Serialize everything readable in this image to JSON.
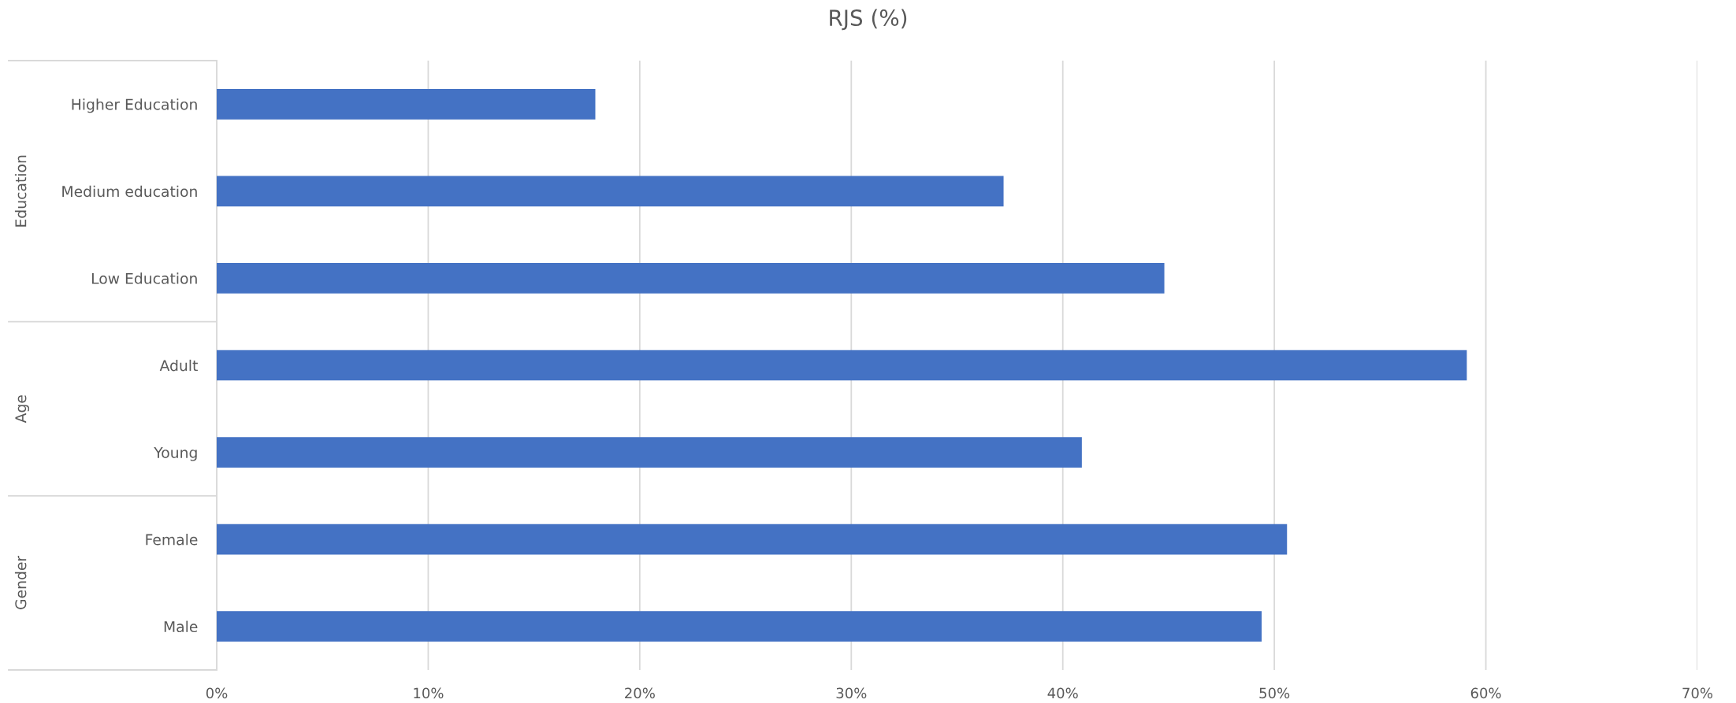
{
  "chart_data": {
    "type": "bar",
    "orientation": "horizontal",
    "title": "RJS (%)",
    "categories": [
      "Higher Education",
      "Medium education",
      "Low Education",
      "Adult",
      "Young",
      "Female",
      "Male"
    ],
    "values": [
      17.9,
      37.2,
      44.8,
      59.1,
      40.9,
      50.6,
      49.4
    ],
    "color": "#4472c4",
    "xlim": [
      0,
      70
    ],
    "xticks": [
      {
        "value": 0,
        "label": "0%"
      },
      {
        "value": 10,
        "label": "10%"
      },
      {
        "value": 20,
        "label": "20%"
      },
      {
        "value": 30,
        "label": "30%"
      },
      {
        "value": 40,
        "label": "40%"
      },
      {
        "value": 50,
        "label": "50%"
      },
      {
        "value": 60,
        "label": "60%"
      },
      {
        "value": 70,
        "label": "70%"
      }
    ],
    "grid": "x",
    "annotations": [
      "Education",
      "Age",
      "Gender"
    ]
  }
}
